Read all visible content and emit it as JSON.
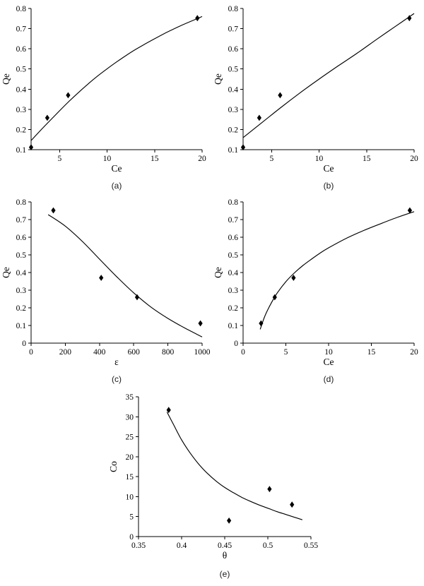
{
  "page": {
    "background": "#ffffff",
    "ink": "#000000"
  },
  "chart_data": [
    {
      "id": "a",
      "type": "scatter",
      "caption": "(a)",
      "xlabel": "Ce",
      "ylabel": "Qe",
      "xlim": [
        2,
        20
      ],
      "ylim": [
        0.1,
        0.8
      ],
      "xticks": [
        5,
        10,
        15,
        20
      ],
      "xtick_labels": [
        "5",
        "10",
        "15",
        "20"
      ],
      "yticks": [
        0.1,
        0.2,
        0.3,
        0.4,
        0.5,
        0.6,
        0.7,
        0.8
      ],
      "ytick_labels": [
        "0.1",
        "0.2",
        "0.3",
        "0.4",
        "0.5",
        "0.6",
        "0.7",
        "0.8"
      ],
      "marker": "filled-diamond",
      "color": "#000000",
      "grid": false,
      "legend": null,
      "points": [
        [
          2,
          0.112
        ],
        [
          3.7,
          0.258
        ],
        [
          5.9,
          0.37
        ],
        [
          19.5,
          0.752
        ]
      ],
      "curve": [
        [
          2,
          0.145
        ],
        [
          3,
          0.196
        ],
        [
          4,
          0.245
        ],
        [
          5,
          0.293
        ],
        [
          6,
          0.34
        ],
        [
          7,
          0.384
        ],
        [
          8,
          0.426
        ],
        [
          9,
          0.465
        ],
        [
          10,
          0.501
        ],
        [
          11,
          0.535
        ],
        [
          12,
          0.567
        ],
        [
          13,
          0.597
        ],
        [
          14,
          0.624
        ],
        [
          15,
          0.65
        ],
        [
          16,
          0.675
        ],
        [
          17,
          0.698
        ],
        [
          18,
          0.72
        ],
        [
          19,
          0.74
        ],
        [
          20,
          0.76
        ]
      ]
    },
    {
      "id": "b",
      "type": "scatter",
      "caption": "(b)",
      "xlabel": "Ce",
      "ylabel": "Qe",
      "xlim": [
        2,
        20
      ],
      "ylim": [
        0.1,
        0.8
      ],
      "xticks": [
        5,
        10,
        15,
        20
      ],
      "xtick_labels": [
        "5",
        "10",
        "15",
        "20"
      ],
      "yticks": [
        0.1,
        0.2,
        0.3,
        0.4,
        0.5,
        0.6,
        0.7,
        0.8
      ],
      "ytick_labels": [
        "0.1",
        "0.2",
        "0.3",
        "0.4",
        "0.5",
        "0.6",
        "0.7",
        "0.8"
      ],
      "marker": "filled-diamond",
      "color": "#000000",
      "grid": false,
      "legend": null,
      "points": [
        [
          2,
          0.112
        ],
        [
          3.7,
          0.258
        ],
        [
          5.9,
          0.37
        ],
        [
          19.5,
          0.752
        ]
      ],
      "curve": [
        [
          2,
          0.16
        ],
        [
          4,
          0.235
        ],
        [
          6,
          0.31
        ],
        [
          8,
          0.382
        ],
        [
          10,
          0.45
        ],
        [
          12,
          0.515
        ],
        [
          14,
          0.578
        ],
        [
          16,
          0.645
        ],
        [
          18,
          0.71
        ],
        [
          20,
          0.775
        ]
      ]
    },
    {
      "id": "c",
      "type": "scatter",
      "caption": "(c)",
      "xlabel": "ε",
      "ylabel": "Qe",
      "xlim": [
        0,
        1000
      ],
      "ylim": [
        0,
        0.8
      ],
      "xticks": [
        0,
        200,
        400,
        600,
        800,
        1000
      ],
      "xtick_labels": [
        "0",
        "200",
        "400",
        "600",
        "800",
        "1000"
      ],
      "yticks": [
        0,
        0.1,
        0.2,
        0.3,
        0.4,
        0.5,
        0.6,
        0.7,
        0.8
      ],
      "ytick_labels": [
        "0",
        "0.1",
        "0.2",
        "0.3",
        "0.4",
        "0.5",
        "0.6",
        "0.7",
        "0.8"
      ],
      "marker": "filled-diamond",
      "color": "#000000",
      "grid": false,
      "legend": null,
      "points": [
        [
          130,
          0.752
        ],
        [
          410,
          0.37
        ],
        [
          620,
          0.26
        ],
        [
          990,
          0.112
        ]
      ],
      "curve": [
        [
          100,
          0.728
        ],
        [
          200,
          0.663
        ],
        [
          300,
          0.576
        ],
        [
          400,
          0.476
        ],
        [
          500,
          0.377
        ],
        [
          600,
          0.285
        ],
        [
          700,
          0.205
        ],
        [
          800,
          0.14
        ],
        [
          900,
          0.085
        ],
        [
          1000,
          0.035
        ]
      ]
    },
    {
      "id": "d",
      "type": "scatter",
      "caption": "(d)",
      "xlabel": "Ce",
      "ylabel": "Qe",
      "xlim": [
        0,
        20
      ],
      "ylim": [
        0,
        0.8
      ],
      "xticks": [
        0,
        5,
        10,
        15,
        20
      ],
      "xtick_labels": [
        "0",
        "5",
        "10",
        "15",
        "20"
      ],
      "yticks": [
        0,
        0.1,
        0.2,
        0.3,
        0.4,
        0.5,
        0.6,
        0.7,
        0.8
      ],
      "ytick_labels": [
        "0",
        "0.1",
        "0.2",
        "0.3",
        "0.4",
        "0.5",
        "0.6",
        "0.7",
        "0.8"
      ],
      "marker": "filled-diamond",
      "color": "#000000",
      "grid": false,
      "legend": null,
      "points": [
        [
          2.1,
          0.112
        ],
        [
          3.7,
          0.26
        ],
        [
          5.9,
          0.37
        ],
        [
          19.5,
          0.752
        ]
      ],
      "curve": [
        [
          2,
          0.078
        ],
        [
          2.5,
          0.148
        ],
        [
          3,
          0.2
        ],
        [
          3.5,
          0.245
        ],
        [
          4,
          0.285
        ],
        [
          5,
          0.348
        ],
        [
          6,
          0.398
        ],
        [
          7,
          0.44
        ],
        [
          8,
          0.476
        ],
        [
          9,
          0.51
        ],
        [
          10,
          0.54
        ],
        [
          12,
          0.592
        ],
        [
          14,
          0.636
        ],
        [
          16,
          0.675
        ],
        [
          18,
          0.712
        ],
        [
          20,
          0.745
        ]
      ]
    },
    {
      "id": "e",
      "type": "scatter",
      "caption": "(e)",
      "xlabel": "θ",
      "ylabel": "Co",
      "xlim": [
        0.35,
        0.55
      ],
      "ylim": [
        0,
        35
      ],
      "xticks": [
        0.35,
        0.4,
        0.45,
        0.5,
        0.55
      ],
      "xtick_labels": [
        "0.35",
        "0.4",
        "0.45",
        "0.5",
        "0.55"
      ],
      "yticks": [
        0,
        5,
        10,
        15,
        20,
        25,
        30,
        35
      ],
      "ytick_labels": [
        "0",
        "5",
        "10",
        "15",
        "20",
        "25",
        "30",
        "35"
      ],
      "marker": "filled-diamond",
      "color": "#000000",
      "grid": false,
      "legend": null,
      "points": [
        [
          0.385,
          31.7
        ],
        [
          0.455,
          4.0
        ],
        [
          0.502,
          11.9
        ],
        [
          0.528,
          8.0
        ]
      ],
      "curve": [
        [
          0.383,
          31.2
        ],
        [
          0.39,
          28.3
        ],
        [
          0.4,
          24.2
        ],
        [
          0.41,
          20.9
        ],
        [
          0.42,
          18.1
        ],
        [
          0.43,
          15.8
        ],
        [
          0.44,
          13.9
        ],
        [
          0.45,
          12.3
        ],
        [
          0.46,
          11.0
        ],
        [
          0.47,
          9.8
        ],
        [
          0.48,
          8.8
        ],
        [
          0.49,
          7.9
        ],
        [
          0.5,
          7.1
        ],
        [
          0.51,
          6.3
        ],
        [
          0.52,
          5.6
        ],
        [
          0.53,
          4.9
        ],
        [
          0.54,
          4.2
        ]
      ]
    }
  ]
}
